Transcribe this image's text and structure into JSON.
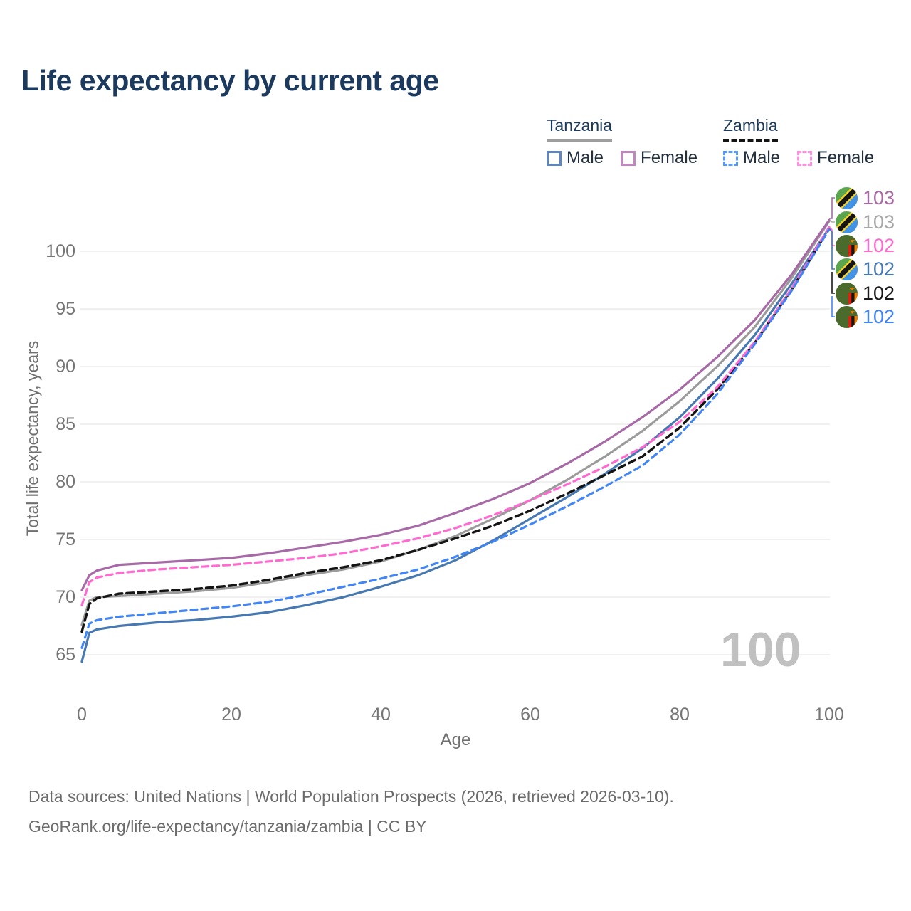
{
  "title": "Life expectancy by current age",
  "legend": {
    "groups": [
      {
        "country": "Tanzania",
        "line_style": "solid",
        "items": [
          {
            "label": "Male",
            "color": "#5e86c3",
            "dashed": false
          },
          {
            "label": "Female",
            "color": "#c286c0",
            "dashed": false
          }
        ]
      },
      {
        "country": "Zambia",
        "line_style": "dashed",
        "items": [
          {
            "label": "Male",
            "color": "#579af6",
            "dashed": true
          },
          {
            "label": "Female",
            "color": "#ff8fe0",
            "dashed": true
          }
        ]
      }
    ]
  },
  "chart_data": {
    "type": "line",
    "title": "Life expectancy by current age",
    "xlabel": "Age",
    "ylabel": "Total life expectancy, years",
    "xticks": [
      0,
      20,
      40,
      60,
      80,
      100
    ],
    "yticks": [
      65,
      70,
      75,
      80,
      85,
      90,
      95,
      100
    ],
    "xlim": [
      0,
      100
    ],
    "ylim": [
      63.5,
      104
    ],
    "grid": "horizontal",
    "gridline_color": "#e8e8e8",
    "ages": [
      0,
      1,
      2,
      5,
      10,
      15,
      20,
      25,
      30,
      35,
      40,
      45,
      50,
      55,
      60,
      65,
      70,
      75,
      80,
      85,
      90,
      95,
      100
    ],
    "series": [
      {
        "id": "tanzania",
        "name": "Tanzania",
        "country": "Tanzania",
        "sex": "Both",
        "color": "#9b9b9b",
        "dash": null,
        "width": 3.2,
        "values": [
          67.6,
          69.7,
          70.0,
          70.1,
          70.3,
          70.5,
          70.8,
          71.3,
          71.9,
          72.4,
          73.1,
          74.1,
          75.3,
          76.8,
          78.4,
          80.2,
          82.2,
          84.4,
          87.0,
          90.0,
          93.4,
          97.7,
          102.6
        ],
        "end_label": "103"
      },
      {
        "id": "tanzania-female",
        "name": "Tanzania Female",
        "country": "Tanzania",
        "sex": "Female",
        "color": "#a76aa7",
        "dash": null,
        "width": 3.2,
        "values": [
          70.6,
          71.9,
          72.3,
          72.8,
          73.0,
          73.2,
          73.4,
          73.8,
          74.3,
          74.8,
          75.4,
          76.2,
          77.3,
          78.5,
          79.9,
          81.6,
          83.5,
          85.6,
          88.0,
          90.8,
          94.0,
          98.0,
          102.7
        ],
        "end_label": "103"
      },
      {
        "id": "tanzania-male",
        "name": "Tanzania Male",
        "country": "Tanzania",
        "sex": "Male",
        "color": "#4678b2",
        "dash": null,
        "width": 3.2,
        "values": [
          64.4,
          66.9,
          67.2,
          67.5,
          67.8,
          68.0,
          68.3,
          68.7,
          69.3,
          70.0,
          70.9,
          71.9,
          73.2,
          74.9,
          76.8,
          78.7,
          80.7,
          82.9,
          85.6,
          88.9,
          92.7,
          97.2,
          102.0
        ],
        "end_label": "102"
      },
      {
        "id": "zambia",
        "name": "Zambia",
        "country": "Zambia",
        "sex": "Both",
        "color": "#141414",
        "dash": "10 6",
        "width": 3.4,
        "values": [
          67.0,
          69.4,
          69.9,
          70.3,
          70.5,
          70.7,
          71.0,
          71.5,
          72.1,
          72.6,
          73.2,
          74.1,
          75.1,
          76.2,
          77.5,
          79.0,
          80.6,
          82.2,
          84.7,
          88.0,
          92.0,
          96.7,
          102.0
        ],
        "end_label": "102"
      },
      {
        "id": "zambia-female",
        "name": "Zambia Female",
        "country": "Zambia",
        "sex": "Female",
        "color": "#ff69d0",
        "dash": "9 6",
        "width": 3.2,
        "values": [
          69.3,
          71.3,
          71.7,
          72.1,
          72.4,
          72.6,
          72.8,
          73.1,
          73.4,
          73.8,
          74.4,
          75.1,
          76.0,
          77.1,
          78.4,
          79.8,
          81.3,
          83.0,
          85.2,
          88.2,
          92.1,
          96.8,
          102.1
        ],
        "end_label": "102"
      },
      {
        "id": "zambia-male",
        "name": "Zambia Male",
        "country": "Zambia",
        "sex": "Male",
        "color": "#4285f4",
        "dash": "9 6",
        "width": 3.2,
        "values": [
          65.6,
          67.7,
          68.0,
          68.3,
          68.6,
          68.9,
          69.2,
          69.6,
          70.2,
          70.9,
          71.6,
          72.4,
          73.5,
          74.8,
          76.3,
          77.9,
          79.6,
          81.4,
          84.1,
          87.6,
          91.9,
          96.6,
          101.9
        ],
        "end_label": "102"
      }
    ]
  },
  "right_labels": [
    {
      "flag": "tanzania",
      "value": "103",
      "color": "#a76aa7",
      "series": "Tanzania Female"
    },
    {
      "flag": "tanzania",
      "value": "103",
      "color": "#a8a8a8",
      "series": "Tanzania"
    },
    {
      "flag": "zambia",
      "value": "102",
      "color": "#ff69d0",
      "series": "Zambia Female"
    },
    {
      "flag": "tanzania",
      "value": "102",
      "color": "#4678b2",
      "series": "Tanzania Male"
    },
    {
      "flag": "zambia",
      "value": "102",
      "color": "#1a1a1a",
      "series": "Zambia"
    },
    {
      "flag": "zambia",
      "value": "102",
      "color": "#4285f4",
      "series": "Zambia Male"
    }
  ],
  "watermark": "100",
  "footer": {
    "line1": "Data sources: United Nations | World Population Prospects (2026, retrieved 2026-03-10).",
    "line2": "GeoRank.org/life-expectancy/tanzania/zambia | CC BY"
  }
}
